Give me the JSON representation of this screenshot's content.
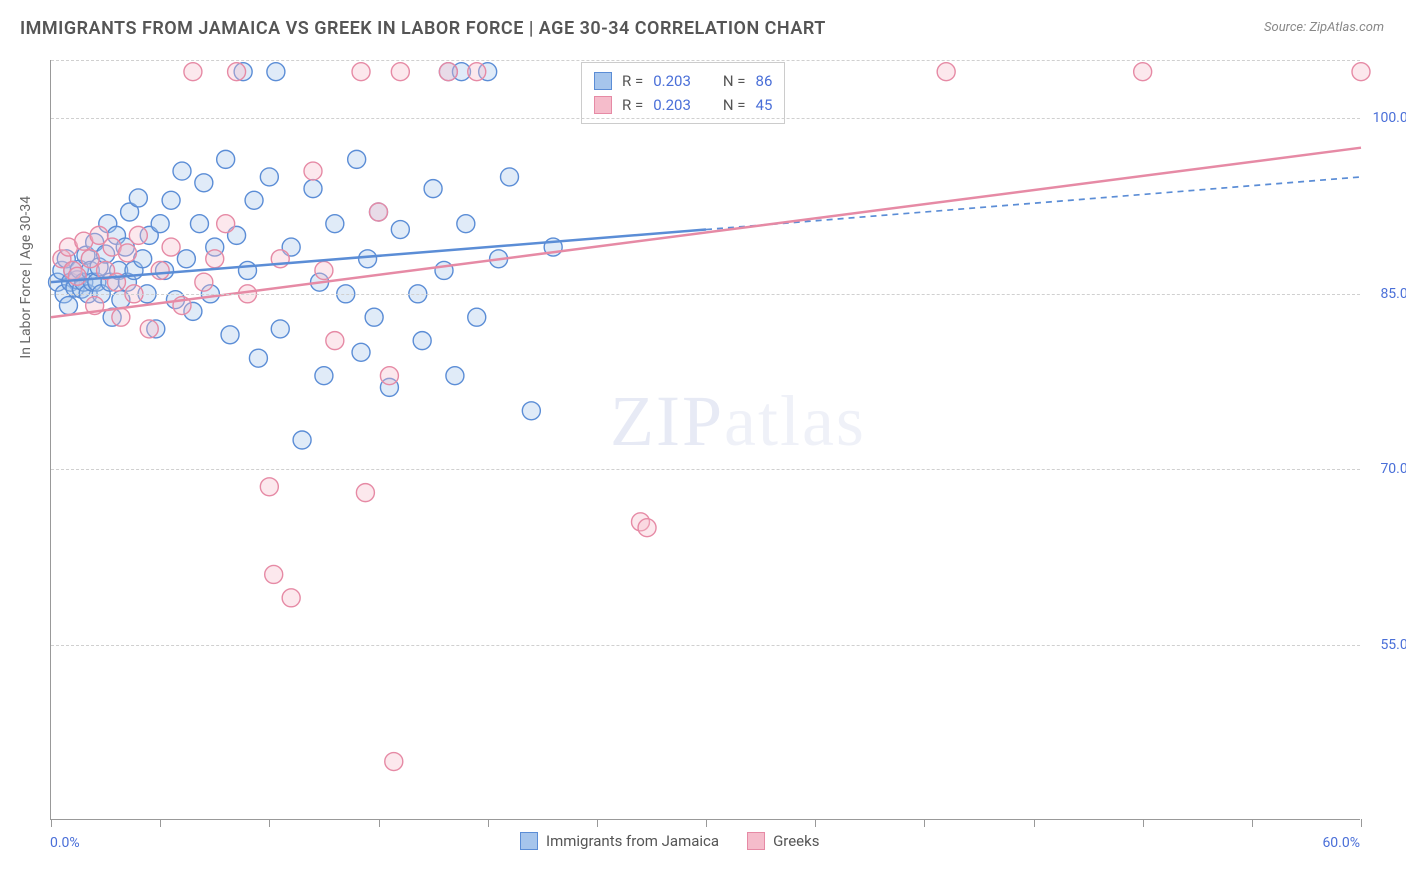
{
  "title": "IMMIGRANTS FROM JAMAICA VS GREEK IN LABOR FORCE | AGE 30-34 CORRELATION CHART",
  "source_label": "Source: ",
  "source_name": "ZipAtlas.com",
  "y_axis_title": "In Labor Force | Age 30-34",
  "watermark_a": "ZIP",
  "watermark_b": "atlas",
  "chart": {
    "type": "scatter",
    "plot_bg": "#ffffff",
    "grid_color": "#d0d0d0",
    "axis_color": "#999999",
    "xlim": [
      0,
      60
    ],
    "ylim": [
      40,
      105
    ],
    "x_ticks": [
      0,
      5,
      10,
      15,
      20,
      25,
      30,
      35,
      40,
      45,
      50,
      55,
      60
    ],
    "y_gridlines": [
      55,
      70,
      85,
      100,
      105
    ],
    "y_tick_labels": [
      {
        "v": 55,
        "t": "55.0%"
      },
      {
        "v": 70,
        "t": "70.0%"
      },
      {
        "v": 85,
        "t": "85.0%"
      },
      {
        "v": 100,
        "t": "100.0%"
      }
    ],
    "x_tick_labels": {
      "left": "0.0%",
      "right": "60.0%"
    },
    "marker_radius": 9,
    "marker_stroke_width": 1.4,
    "fill_opacity": 0.35,
    "series": [
      {
        "name": "Immigrants from Jamaica",
        "color_stroke": "#5b8dd6",
        "color_fill": "#a6c5ec",
        "R": "0.203",
        "N": "86",
        "trend": {
          "x1": 0,
          "y1": 86,
          "x2": 30,
          "y2": 90.5,
          "dash_x2": 60,
          "dash_y2": 95,
          "width": 2.5
        },
        "points": [
          [
            0.3,
            86
          ],
          [
            0.5,
            87
          ],
          [
            0.6,
            85
          ],
          [
            0.7,
            88
          ],
          [
            0.8,
            84
          ],
          [
            0.9,
            86
          ],
          [
            1.0,
            87
          ],
          [
            1.1,
            85.5
          ],
          [
            1.2,
            86.2
          ],
          [
            1.3,
            87.1
          ],
          [
            1.4,
            85.4
          ],
          [
            1.5,
            86
          ],
          [
            1.6,
            88.3
          ],
          [
            1.7,
            85
          ],
          [
            1.8,
            87
          ],
          [
            1.9,
            86
          ],
          [
            2.0,
            89.4
          ],
          [
            2.1,
            86
          ],
          [
            2.2,
            87.3
          ],
          [
            2.3,
            85
          ],
          [
            2.5,
            88.4
          ],
          [
            2.6,
            91
          ],
          [
            2.7,
            86
          ],
          [
            2.8,
            83
          ],
          [
            3.0,
            90
          ],
          [
            3.1,
            87
          ],
          [
            3.2,
            84.5
          ],
          [
            3.4,
            89
          ],
          [
            3.5,
            86
          ],
          [
            3.6,
            92
          ],
          [
            3.8,
            87
          ],
          [
            4.0,
            93.2
          ],
          [
            4.2,
            88
          ],
          [
            4.4,
            85
          ],
          [
            4.5,
            90
          ],
          [
            4.8,
            82
          ],
          [
            5.0,
            91
          ],
          [
            5.2,
            87
          ],
          [
            5.5,
            93
          ],
          [
            5.7,
            84.5
          ],
          [
            6.0,
            95.5
          ],
          [
            6.2,
            88
          ],
          [
            6.5,
            83.5
          ],
          [
            6.8,
            91
          ],
          [
            7.0,
            94.5
          ],
          [
            7.3,
            85
          ],
          [
            7.5,
            89
          ],
          [
            8.0,
            96.5
          ],
          [
            8.2,
            81.5
          ],
          [
            8.5,
            90
          ],
          [
            8.8,
            104
          ],
          [
            9.0,
            87
          ],
          [
            9.3,
            93
          ],
          [
            9.5,
            79.5
          ],
          [
            10.0,
            95
          ],
          [
            10.3,
            104
          ],
          [
            10.5,
            82
          ],
          [
            11.0,
            89
          ],
          [
            11.5,
            72.5
          ],
          [
            12.0,
            94
          ],
          [
            12.3,
            86
          ],
          [
            12.5,
            78
          ],
          [
            13.0,
            91
          ],
          [
            13.5,
            85
          ],
          [
            14.0,
            96.5
          ],
          [
            14.2,
            80
          ],
          [
            14.5,
            88
          ],
          [
            14.8,
            83
          ],
          [
            15.0,
            92
          ],
          [
            15.5,
            77
          ],
          [
            16.0,
            90.5
          ],
          [
            16.8,
            85
          ],
          [
            17.0,
            81
          ],
          [
            17.5,
            94
          ],
          [
            18.0,
            87
          ],
          [
            18.2,
            104
          ],
          [
            18.5,
            78
          ],
          [
            18.8,
            104
          ],
          [
            19.0,
            91
          ],
          [
            19.5,
            83
          ],
          [
            20.0,
            104
          ],
          [
            20.5,
            88
          ],
          [
            21.0,
            95
          ],
          [
            22.0,
            75
          ],
          [
            23.0,
            89
          ],
          [
            25.0,
            104
          ]
        ]
      },
      {
        "name": "Greeks",
        "color_stroke": "#e68aa5",
        "color_fill": "#f5bccb",
        "R": "0.203",
        "N": "45",
        "trend": {
          "x1": 0,
          "y1": 83,
          "x2": 60,
          "y2": 97.5,
          "width": 2.5
        },
        "points": [
          [
            0.5,
            88
          ],
          [
            0.8,
            89
          ],
          [
            1.0,
            87
          ],
          [
            1.2,
            86.5
          ],
          [
            1.5,
            89.5
          ],
          [
            1.8,
            88
          ],
          [
            2.0,
            84
          ],
          [
            2.2,
            90
          ],
          [
            2.5,
            87
          ],
          [
            2.8,
            89
          ],
          [
            3.0,
            86
          ],
          [
            3.2,
            83
          ],
          [
            3.5,
            88.5
          ],
          [
            3.8,
            85
          ],
          [
            4.0,
            90
          ],
          [
            4.5,
            82
          ],
          [
            5.0,
            87
          ],
          [
            5.5,
            89
          ],
          [
            6.0,
            84
          ],
          [
            6.5,
            104
          ],
          [
            7.0,
            86
          ],
          [
            7.5,
            88
          ],
          [
            8.0,
            91
          ],
          [
            8.5,
            104
          ],
          [
            9.0,
            85
          ],
          [
            10.0,
            68.5
          ],
          [
            10.2,
            61
          ],
          [
            10.5,
            88
          ],
          [
            11.0,
            59
          ],
          [
            12.0,
            95.5
          ],
          [
            12.5,
            87
          ],
          [
            13.0,
            81
          ],
          [
            14.2,
            104
          ],
          [
            14.4,
            68
          ],
          [
            15.0,
            92
          ],
          [
            15.5,
            78
          ],
          [
            15.7,
            45
          ],
          [
            16.0,
            104
          ],
          [
            18.2,
            104
          ],
          [
            19.5,
            104
          ],
          [
            27.0,
            65.5
          ],
          [
            27.3,
            65
          ],
          [
            41.0,
            104
          ],
          [
            50.0,
            104
          ],
          [
            60.0,
            104
          ]
        ]
      }
    ]
  },
  "legend_top": {
    "r_label": "R =",
    "n_label": "N ="
  }
}
